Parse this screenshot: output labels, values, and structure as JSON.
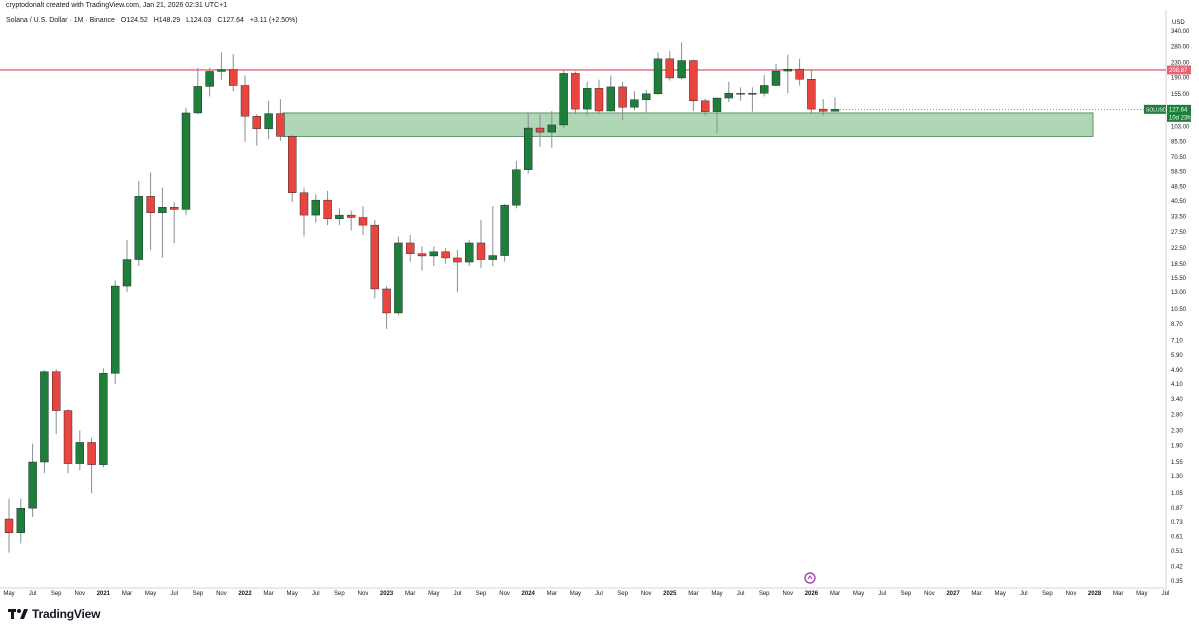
{
  "header": {
    "credit": "cryptodonalt created with TradingView.com, Jan 21, 2026 02:31 UTC+1",
    "symbol": "Solana / U.S. Dollar · 1M · Binance",
    "open": "O124.52",
    "high": "H148.29",
    "low": "L124.03",
    "close": "C127.64",
    "change": "+3.11 (+2.50%)"
  },
  "branding": {
    "logo_text": "TradingView"
  },
  "chart_data": {
    "type": "candlestick",
    "currency_label": "USD",
    "y_scale": "log",
    "ylim": [
      0.31,
      370
    ],
    "y_ticks": [
      "340.00",
      "280.00",
      "230.00",
      "190.00",
      "155.00",
      "125.00",
      "103.00",
      "85.50",
      "70.50",
      "58.50",
      "48.50",
      "40.50",
      "33.50",
      "27.50",
      "22.50",
      "18.50",
      "15.50",
      "13.00",
      "10.50",
      "8.70",
      "7.10",
      "5.90",
      "4.90",
      "4.10",
      "3.40",
      "2.80",
      "2.30",
      "1.90",
      "1.55",
      "1.30",
      "1.05",
      "0.87",
      "0.73",
      "0.61",
      "0.51",
      "0.42",
      "0.35"
    ],
    "x_labels": [
      {
        "label": "May",
        "year": false
      },
      {
        "label": "Jul",
        "year": false
      },
      {
        "label": "Sep",
        "year": false
      },
      {
        "label": "Nov",
        "year": false
      },
      {
        "label": "2021",
        "year": true
      },
      {
        "label": "Mar",
        "year": false
      },
      {
        "label": "May",
        "year": false
      },
      {
        "label": "Jul",
        "year": false
      },
      {
        "label": "Sep",
        "year": false
      },
      {
        "label": "Nov",
        "year": false
      },
      {
        "label": "2022",
        "year": true
      },
      {
        "label": "Mar",
        "year": false
      },
      {
        "label": "May",
        "year": false
      },
      {
        "label": "Jul",
        "year": false
      },
      {
        "label": "Sep",
        "year": false
      },
      {
        "label": "Nov",
        "year": false
      },
      {
        "label": "2023",
        "year": true
      },
      {
        "label": "Mar",
        "year": false
      },
      {
        "label": "May",
        "year": false
      },
      {
        "label": "Jul",
        "year": false
      },
      {
        "label": "Sep",
        "year": false
      },
      {
        "label": "Nov",
        "year": false
      },
      {
        "label": "2024",
        "year": true
      },
      {
        "label": "Mar",
        "year": false
      },
      {
        "label": "May",
        "year": false
      },
      {
        "label": "Jul",
        "year": false
      },
      {
        "label": "Sep",
        "year": false
      },
      {
        "label": "Nov",
        "year": false
      },
      {
        "label": "2025",
        "year": true
      },
      {
        "label": "Mar",
        "year": false
      },
      {
        "label": "May",
        "year": false
      },
      {
        "label": "Jul",
        "year": false
      },
      {
        "label": "Sep",
        "year": false
      },
      {
        "label": "Nov",
        "year": false
      },
      {
        "label": "2026",
        "year": true
      },
      {
        "label": "Mar",
        "year": false
      },
      {
        "label": "May",
        "year": false
      },
      {
        "label": "Jul",
        "year": false
      },
      {
        "label": "Sep",
        "year": false
      },
      {
        "label": "Nov",
        "year": false
      },
      {
        "label": "2027",
        "year": true
      },
      {
        "label": "Mar",
        "year": false
      },
      {
        "label": "May",
        "year": false
      },
      {
        "label": "Jul",
        "year": false
      },
      {
        "label": "Sep",
        "year": false
      },
      {
        "label": "Nov",
        "year": false
      },
      {
        "label": "2028",
        "year": true
      },
      {
        "label": "Mar",
        "year": false
      },
      {
        "label": "May",
        "year": false
      },
      {
        "label": "Jul",
        "year": false
      }
    ],
    "candles": [
      {
        "o": 0.76,
        "h": 0.98,
        "l": 0.5,
        "c": 0.64
      },
      {
        "o": 0.64,
        "h": 0.98,
        "l": 0.56,
        "c": 0.87
      },
      {
        "o": 0.87,
        "h": 1.95,
        "l": 0.78,
        "c": 1.55
      },
      {
        "o": 1.55,
        "h": 4.9,
        "l": 1.35,
        "c": 4.8
      },
      {
        "o": 4.8,
        "h": 4.95,
        "l": 2.2,
        "c": 2.95
      },
      {
        "o": 2.95,
        "h": 3.0,
        "l": 1.35,
        "c": 1.52
      },
      {
        "o": 1.52,
        "h": 2.3,
        "l": 1.4,
        "c": 1.98
      },
      {
        "o": 1.98,
        "h": 2.1,
        "l": 1.05,
        "c": 1.5
      },
      {
        "o": 1.5,
        "h": 5.0,
        "l": 1.45,
        "c": 4.7
      },
      {
        "o": 4.7,
        "h": 15.0,
        "l": 4.1,
        "c": 14.0
      },
      {
        "o": 14.0,
        "h": 25.0,
        "l": 13.0,
        "c": 19.5
      },
      {
        "o": 19.5,
        "h": 52.0,
        "l": 18.0,
        "c": 43.0
      },
      {
        "o": 43.0,
        "h": 58.0,
        "l": 22.0,
        "c": 35.0
      },
      {
        "o": 35.0,
        "h": 48.0,
        "l": 20.0,
        "c": 37.5
      },
      {
        "o": 37.5,
        "h": 40.0,
        "l": 24.0,
        "c": 36.5
      },
      {
        "o": 36.5,
        "h": 130.0,
        "l": 34.0,
        "c": 122.0
      },
      {
        "o": 122.0,
        "h": 215.0,
        "l": 120.0,
        "c": 170.0
      },
      {
        "o": 170.0,
        "h": 215.0,
        "l": 150.0,
        "c": 205.0
      },
      {
        "o": 205.0,
        "h": 260.0,
        "l": 185.0,
        "c": 210.0
      },
      {
        "o": 210.0,
        "h": 255.0,
        "l": 160.0,
        "c": 172.0
      },
      {
        "o": 172.0,
        "h": 195.0,
        "l": 85.0,
        "c": 117.0
      },
      {
        "o": 117.0,
        "h": 120.0,
        "l": 81.0,
        "c": 100.0
      },
      {
        "o": 100.0,
        "h": 142.0,
        "l": 88.0,
        "c": 121.0
      },
      {
        "o": 121.0,
        "h": 145.0,
        "l": 86.0,
        "c": 91.0
      },
      {
        "o": 91.0,
        "h": 93.0,
        "l": 40.0,
        "c": 45.0
      },
      {
        "o": 45.0,
        "h": 48.0,
        "l": 26.0,
        "c": 34.0
      },
      {
        "o": 34.0,
        "h": 44.0,
        "l": 31.0,
        "c": 41.0
      },
      {
        "o": 41.0,
        "h": 46.0,
        "l": 30.0,
        "c": 32.5
      },
      {
        "o": 32.5,
        "h": 37.0,
        "l": 30.0,
        "c": 34.0
      },
      {
        "o": 34.0,
        "h": 36.0,
        "l": 28.0,
        "c": 33.0
      },
      {
        "o": 33.0,
        "h": 38.0,
        "l": 26.5,
        "c": 30.0
      },
      {
        "o": 30.0,
        "h": 32.0,
        "l": 12.0,
        "c": 13.5
      },
      {
        "o": 13.5,
        "h": 14.0,
        "l": 8.2,
        "c": 10.0
      },
      {
        "o": 10.0,
        "h": 26.0,
        "l": 9.7,
        "c": 24.0
      },
      {
        "o": 24.0,
        "h": 26.5,
        "l": 19.0,
        "c": 21.0
      },
      {
        "o": 21.0,
        "h": 23.0,
        "l": 17.0,
        "c": 20.4
      },
      {
        "o": 20.4,
        "h": 23.0,
        "l": 18.0,
        "c": 21.5
      },
      {
        "o": 21.5,
        "h": 22.5,
        "l": 18.5,
        "c": 19.9
      },
      {
        "o": 19.9,
        "h": 22.0,
        "l": 13.0,
        "c": 18.9
      },
      {
        "o": 18.9,
        "h": 25.0,
        "l": 18.0,
        "c": 24.0
      },
      {
        "o": 24.0,
        "h": 32.0,
        "l": 17.5,
        "c": 19.5
      },
      {
        "o": 19.5,
        "h": 38.0,
        "l": 18.0,
        "c": 20.5
      },
      {
        "o": 20.5,
        "h": 39.0,
        "l": 19.0,
        "c": 38.5
      },
      {
        "o": 38.5,
        "h": 67.0,
        "l": 37.0,
        "c": 60.0
      },
      {
        "o": 60.0,
        "h": 122.0,
        "l": 57.0,
        "c": 101.0
      },
      {
        "o": 101.0,
        "h": 120.0,
        "l": 80.0,
        "c": 96.0
      },
      {
        "o": 96.0,
        "h": 125.0,
        "l": 79.0,
        "c": 105.0
      },
      {
        "o": 105.0,
        "h": 210.0,
        "l": 101.0,
        "c": 200.0
      },
      {
        "o": 200.0,
        "h": 205.0,
        "l": 120.0,
        "c": 128.0
      },
      {
        "o": 128.0,
        "h": 180.0,
        "l": 118.0,
        "c": 166.0
      },
      {
        "o": 166.0,
        "h": 185.0,
        "l": 120.0,
        "c": 125.0
      },
      {
        "o": 125.0,
        "h": 195.0,
        "l": 124.0,
        "c": 169.0
      },
      {
        "o": 169.0,
        "h": 180.0,
        "l": 111.0,
        "c": 131.0
      },
      {
        "o": 131.0,
        "h": 160.0,
        "l": 126.0,
        "c": 144.0
      },
      {
        "o": 144.0,
        "h": 163.0,
        "l": 123.0,
        "c": 155.0
      },
      {
        "o": 155.0,
        "h": 260.0,
        "l": 153.0,
        "c": 240.0
      },
      {
        "o": 240.0,
        "h": 265.0,
        "l": 183.0,
        "c": 189.0
      },
      {
        "o": 189.0,
        "h": 295.0,
        "l": 186.0,
        "c": 235.0
      },
      {
        "o": 235.0,
        "h": 238.0,
        "l": 125.0,
        "c": 142.0
      },
      {
        "o": 142.0,
        "h": 146.0,
        "l": 118.0,
        "c": 124.0
      },
      {
        "o": 124.0,
        "h": 148.0,
        "l": 95.0,
        "c": 147.0
      },
      {
        "o": 147.0,
        "h": 180.0,
        "l": 140.0,
        "c": 156.0
      },
      {
        "o": 156.0,
        "h": 168.0,
        "l": 142.0,
        "c": 154.0
      },
      {
        "o": 154.0,
        "h": 168.0,
        "l": 124.0,
        "c": 156.0
      },
      {
        "o": 156.0,
        "h": 196.0,
        "l": 150.0,
        "c": 172.0
      },
      {
        "o": 172.0,
        "h": 225.0,
        "l": 170.0,
        "c": 206.0
      },
      {
        "o": 206.0,
        "h": 253.0,
        "l": 156.0,
        "c": 211.0
      },
      {
        "o": 211.0,
        "h": 240.0,
        "l": 172.0,
        "c": 186.0
      },
      {
        "o": 186.0,
        "h": 210.0,
        "l": 120.0,
        "c": 128.0
      },
      {
        "o": 128.0,
        "h": 145.0,
        "l": 118.0,
        "c": 124.5
      },
      {
        "o": 124.52,
        "h": 148.29,
        "l": 124.03,
        "c": 127.64
      }
    ],
    "resistance_line": {
      "value": 208.87,
      "label": "208.87"
    },
    "support_zone": {
      "low": 91.0,
      "high": 122.0
    },
    "price_tag": {
      "symbol": "SOLUSD",
      "value": "127.64",
      "countdown": "10d 23h"
    },
    "colors": {
      "up": "#1e7e3a",
      "down": "#e8453f",
      "wick": "#8a8d94",
      "resistance": "#e46675",
      "zone_fill": "#a6d3ad",
      "zone_border": "#3f7b4c",
      "tag": "#1e7e3a"
    }
  }
}
